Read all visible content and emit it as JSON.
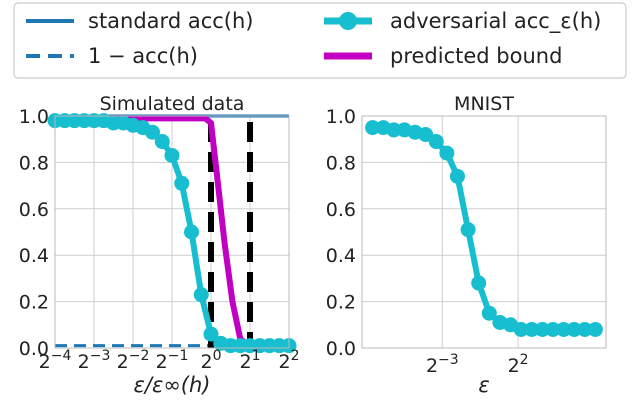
{
  "legend": {
    "entries": [
      {
        "label": "standard acc(h)",
        "color": "#1f77b4",
        "style": "solid"
      },
      {
        "label": "1 − acc(h)",
        "color": "#1f77b4",
        "style": "dashed"
      },
      {
        "label": "adversarial acc_ε(h)",
        "color": "#17becf",
        "style": "line-marker"
      },
      {
        "label": "predicted bound",
        "color": "#c100c1",
        "style": "solid-thick"
      }
    ]
  },
  "chart_data": [
    {
      "type": "line",
      "title": "Simulated data",
      "xlabel": "ε/ε∞(h)",
      "ylabel": "",
      "xscale": "log2",
      "xlim_log2": [
        -4,
        2
      ],
      "ylim": [
        0,
        1
      ],
      "grid": true,
      "x_ticks": [
        "2^-4",
        "2^-3",
        "2^-2",
        "2^-1",
        "2^0",
        "2^1",
        "2^2"
      ],
      "y_ticks": [
        "0.0",
        "0.2",
        "0.4",
        "0.6",
        "0.8",
        "1.0"
      ],
      "standard_acc": 1.0,
      "one_minus_acc": 0.01,
      "vertical_dashed_lines_x_log2": [
        0,
        1
      ],
      "series": [
        {
          "name": "adversarial acc_ε(h)",
          "x_log2": [
            -4,
            -3.75,
            -3.5,
            -3.25,
            -3,
            -2.75,
            -2.5,
            -2.25,
            -2,
            -1.75,
            -1.5,
            -1.25,
            -1,
            -0.75,
            -0.5,
            -0.25,
            0,
            0.25,
            0.5,
            0.75,
            1,
            1.25,
            1.5,
            1.75,
            2
          ],
          "values": [
            0.98,
            0.98,
            0.98,
            0.98,
            0.98,
            0.98,
            0.97,
            0.97,
            0.96,
            0.95,
            0.93,
            0.89,
            0.83,
            0.71,
            0.5,
            0.23,
            0.06,
            0.02,
            0.01,
            0.01,
            0.01,
            0.01,
            0.01,
            0.01,
            0.01
          ]
        },
        {
          "name": "predicted bound",
          "x_log2": [
            -4,
            -0.15,
            0,
            0.15,
            0.35,
            0.55,
            0.75,
            1.0,
            2
          ],
          "values": [
            0.99,
            0.99,
            0.97,
            0.75,
            0.45,
            0.2,
            0.04,
            0.0,
            0.0
          ]
        }
      ]
    },
    {
      "type": "line",
      "title": "MNIST",
      "xlabel": "ε",
      "ylabel": "",
      "xscale": "log2",
      "ylim": [
        0,
        1
      ],
      "grid": true,
      "x_ticks": [
        "2^-3",
        "2^2"
      ],
      "y_ticks": [
        "0.0",
        "0.2",
        "0.4",
        "0.6",
        "0.8",
        "1.0"
      ],
      "series": [
        {
          "name": "adversarial acc_ε(h)",
          "x_log2": [
            -7.6,
            -6.9,
            -6.2,
            -5.5,
            -4.8,
            -4.1,
            -3.4,
            -2.7,
            -2.0,
            -1.3,
            -0.6,
            0.1,
            0.8,
            1.5,
            2.2,
            2.9,
            3.6,
            4.3,
            5.0,
            5.7,
            6.4,
            7.1
          ],
          "values": [
            0.95,
            0.95,
            0.94,
            0.94,
            0.93,
            0.92,
            0.89,
            0.84,
            0.74,
            0.51,
            0.28,
            0.15,
            0.11,
            0.1,
            0.08,
            0.08,
            0.08,
            0.08,
            0.08,
            0.08,
            0.08,
            0.08
          ]
        }
      ]
    }
  ]
}
